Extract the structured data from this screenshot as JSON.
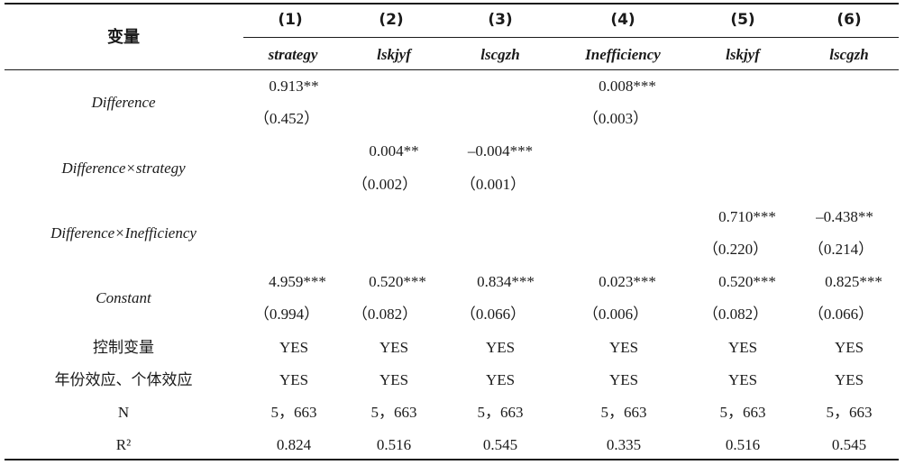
{
  "header": {
    "var_label": "变量",
    "col_nums": [
      "(1)",
      "(2)",
      "(3)",
      "(4)",
      "(5)",
      "(6)"
    ],
    "col_vars": [
      "strategy",
      "lskjyf",
      "lscgzh",
      "Inefficiency",
      "lskjyf",
      "lscgzh"
    ]
  },
  "rows": [
    {
      "label": "Difference",
      "coef": [
        "0.913**",
        "",
        "",
        "0.008***",
        "",
        ""
      ],
      "se": [
        "（0.452）",
        "",
        "",
        "（0.003）",
        "",
        ""
      ]
    },
    {
      "label": "Difference×strategy",
      "coef": [
        "",
        "0.004**",
        "–0.004***",
        "",
        "",
        ""
      ],
      "se": [
        "",
        "（0.002）",
        "（0.001）",
        "",
        "",
        ""
      ]
    },
    {
      "label": "Difference×Inefficiency",
      "coef": [
        "",
        "",
        "",
        "",
        "0.710***",
        "–0.438**"
      ],
      "se": [
        "",
        "",
        "",
        "",
        "（0.220）",
        "（0.214）"
      ]
    },
    {
      "label": "Constant",
      "coef": [
        "4.959***",
        "0.520***",
        "0.834***",
        "0.023***",
        "0.520***",
        "0.825***"
      ],
      "se": [
        "（0.994）",
        "（0.082）",
        "（0.066）",
        "（0.006）",
        "（0.082）",
        "（0.066）"
      ]
    }
  ],
  "footer_rows": [
    {
      "label": "控制变量",
      "values": [
        "YES",
        "YES",
        "YES",
        "YES",
        "YES",
        "YES"
      ]
    },
    {
      "label": "年份效应、个体效应",
      "values": [
        "YES",
        "YES",
        "YES",
        "YES",
        "YES",
        "YES"
      ]
    },
    {
      "label": "N",
      "values": [
        "5，663",
        "5，663",
        "5，663",
        "5，663",
        "5，663",
        "5，663"
      ]
    },
    {
      "label": "R²",
      "values": [
        "0.824",
        "0.516",
        "0.545",
        "0.335",
        "0.516",
        "0.545"
      ]
    }
  ]
}
